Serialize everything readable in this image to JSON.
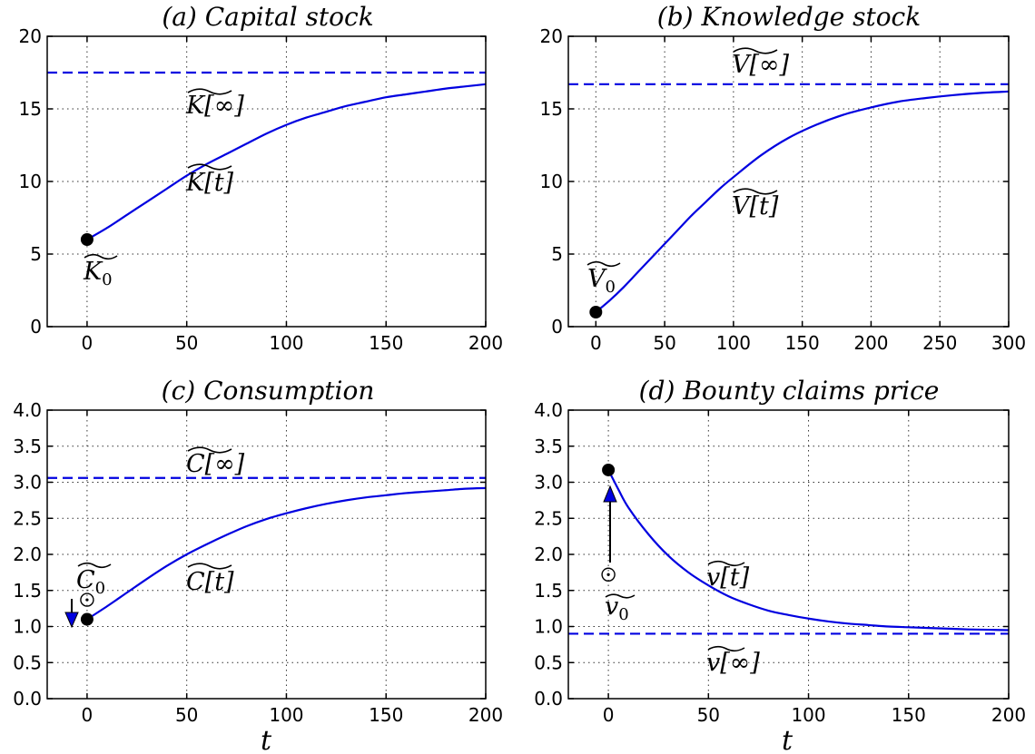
{
  "chart_data": [
    {
      "type": "line",
      "title": "(a) Capital stock",
      "xlabel": "",
      "xlim": [
        -20,
        200
      ],
      "ylim": [
        0,
        20
      ],
      "xticks": [
        0,
        50,
        100,
        150,
        200
      ],
      "yticks": [
        0,
        5,
        10,
        15,
        20
      ],
      "grid": true,
      "series": [
        {
          "name": "K[t]",
          "x": [
            0,
            10,
            20,
            30,
            40,
            50,
            60,
            70,
            80,
            90,
            100,
            110,
            120,
            130,
            140,
            150,
            160,
            170,
            180,
            190,
            200
          ],
          "y": [
            6.0,
            6.8,
            7.7,
            8.6,
            9.5,
            10.4,
            11.2,
            11.9,
            12.6,
            13.3,
            13.9,
            14.4,
            14.8,
            15.2,
            15.5,
            15.8,
            16.0,
            16.2,
            16.4,
            16.55,
            16.7
          ]
        }
      ],
      "asymptote": {
        "name": "K[∞]",
        "y": 17.5
      },
      "initial_point": {
        "name": "K0",
        "x": 0,
        "y": 6.0
      }
    },
    {
      "type": "line",
      "title": "(b) Knowledge stock",
      "xlabel": "",
      "xlim": [
        -20,
        300
      ],
      "ylim": [
        0,
        20
      ],
      "xticks": [
        0,
        50,
        100,
        150,
        200,
        250,
        300
      ],
      "yticks": [
        0,
        5,
        10,
        15,
        20
      ],
      "grid": true,
      "series": [
        {
          "name": "V[t]",
          "x": [
            0,
            10,
            20,
            30,
            40,
            50,
            60,
            70,
            80,
            90,
            100,
            120,
            140,
            160,
            180,
            200,
            220,
            240,
            260,
            280,
            300
          ],
          "y": [
            1.0,
            1.8,
            2.7,
            3.7,
            4.7,
            5.7,
            6.7,
            7.7,
            8.6,
            9.5,
            10.3,
            11.8,
            13.0,
            13.9,
            14.6,
            15.1,
            15.5,
            15.75,
            15.95,
            16.1,
            16.2
          ]
        }
      ],
      "asymptote": {
        "name": "V[∞]",
        "y": 16.7
      },
      "initial_point": {
        "name": "V0",
        "x": 0,
        "y": 1.0
      }
    },
    {
      "type": "line",
      "title": "(c) Consumption",
      "xlabel": "t",
      "xlim": [
        -20,
        200
      ],
      "ylim": [
        0,
        4
      ],
      "xticks": [
        0,
        50,
        100,
        150,
        200
      ],
      "yticks": [
        0.0,
        0.5,
        1.0,
        1.5,
        2.0,
        2.5,
        3.0,
        3.5,
        4.0
      ],
      "grid": true,
      "series": [
        {
          "name": "C[t]",
          "x": [
            0,
            10,
            20,
            30,
            40,
            50,
            60,
            70,
            80,
            90,
            100,
            110,
            120,
            130,
            140,
            150,
            160,
            170,
            180,
            190,
            200
          ],
          "y": [
            1.1,
            1.28,
            1.47,
            1.66,
            1.84,
            2.0,
            2.14,
            2.27,
            2.39,
            2.49,
            2.57,
            2.64,
            2.7,
            2.75,
            2.79,
            2.82,
            2.85,
            2.87,
            2.89,
            2.91,
            2.92
          ]
        }
      ],
      "asymptote": {
        "name": "C[∞]",
        "y": 3.06
      },
      "initial_point": {
        "name": "C0",
        "x": 0,
        "y": 1.1
      },
      "open_point": {
        "x": 0,
        "y": 1.37
      }
    },
    {
      "type": "line",
      "title": "(d) Bounty claims price",
      "xlabel": "t",
      "xlim": [
        -20,
        200
      ],
      "ylim": [
        0,
        4
      ],
      "xticks": [
        0,
        50,
        100,
        150,
        200
      ],
      "yticks": [
        0.0,
        0.5,
        1.0,
        1.5,
        2.0,
        2.5,
        3.0,
        3.5,
        4.0
      ],
      "grid": true,
      "series": [
        {
          "name": "v[t]",
          "x": [
            0,
            5,
            10,
            20,
            30,
            40,
            50,
            60,
            70,
            80,
            90,
            100,
            110,
            120,
            130,
            140,
            150,
            160,
            170,
            180,
            190,
            200
          ],
          "y": [
            3.17,
            2.9,
            2.65,
            2.28,
            1.98,
            1.75,
            1.57,
            1.42,
            1.31,
            1.22,
            1.16,
            1.11,
            1.07,
            1.04,
            1.02,
            1.0,
            0.99,
            0.98,
            0.97,
            0.96,
            0.955,
            0.95
          ]
        }
      ],
      "asymptote": {
        "name": "v[∞]",
        "y": 0.9
      },
      "initial_point": {
        "name": "v0",
        "x": 0,
        "y": 3.17
      },
      "open_point": {
        "x": 0,
        "y": 1.72
      }
    }
  ],
  "colors": {
    "curve": "#0000e0",
    "asymptote": "#0000e0",
    "marker": "#000000"
  }
}
